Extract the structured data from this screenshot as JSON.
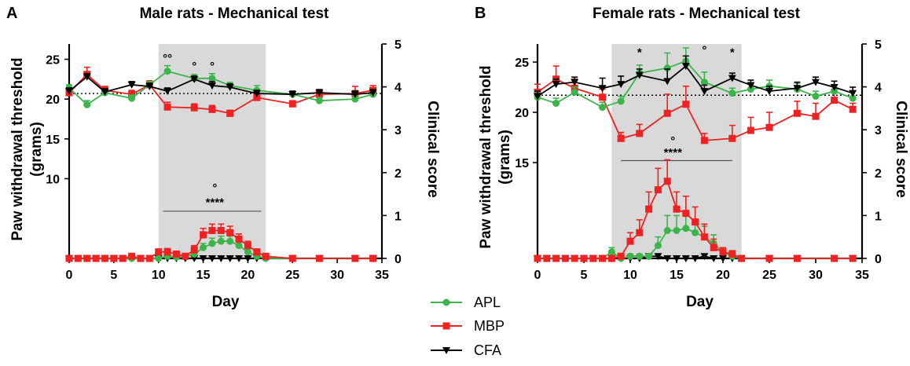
{
  "legend": [
    {
      "name": "APL",
      "color": "#3cb44b",
      "marker": "circle"
    },
    {
      "name": "MBP",
      "color": "#ee2222",
      "marker": "square"
    },
    {
      "name": "CFA",
      "color": "#000000",
      "marker": "triangle-down"
    }
  ],
  "chart_data": [
    {
      "type": "line",
      "panel": "A",
      "title": "Male rats - Mechanical test",
      "xlabel": "Day",
      "ylabel": "Paw withdrawal threshold (grams)",
      "ylabel_lines": [
        "Paw withdrawal threshold",
        "(grams)"
      ],
      "y2label": "Clinical score",
      "xlim": [
        0,
        35
      ],
      "xticks": [
        0,
        5,
        10,
        15,
        20,
        25,
        30,
        35
      ],
      "ylim_left_ticks": [
        10,
        15,
        20,
        25
      ],
      "y2lim": [
        0,
        5
      ],
      "y2ticks": [
        0,
        1,
        2,
        3,
        4,
        5
      ],
      "shaded_region_days": [
        10,
        22
      ],
      "baseline_threshold": 20.7,
      "threshold_series": [
        {
          "name": "APL",
          "x": [
            0,
            2,
            4,
            7,
            9,
            11,
            14,
            16,
            18,
            21,
            25,
            28,
            32,
            34
          ],
          "values": [
            21.4,
            19.3,
            20.8,
            20.1,
            21.8,
            23.5,
            22.6,
            22.6,
            21.7,
            21.1,
            20.6,
            19.8,
            20.0,
            20.6
          ],
          "err": [
            0.4,
            0.5,
            0.4,
            0.4,
            0.4,
            0.7,
            0.5,
            0.6,
            0.4,
            0.6,
            0.4,
            0.4,
            0.5,
            0.6
          ]
        },
        {
          "name": "MBP",
          "x": [
            0,
            2,
            4,
            7,
            9,
            11,
            14,
            16,
            18,
            21,
            25,
            28,
            32,
            34
          ],
          "values": [
            20.8,
            23.1,
            21.1,
            20.6,
            21.8,
            19.0,
            18.9,
            18.7,
            18.2,
            20.2,
            19.4,
            20.6,
            20.7,
            21.1
          ],
          "err": [
            0.5,
            0.9,
            0.5,
            0.5,
            0.5,
            0.6,
            0.5,
            0.5,
            0.4,
            0.4,
            0.4,
            0.4,
            0.9,
            0.6
          ]
        },
        {
          "name": "CFA",
          "x": [
            0,
            2,
            4,
            7,
            9,
            11,
            14,
            16,
            18,
            21,
            25,
            28,
            32,
            34
          ],
          "values": [
            21.0,
            22.8,
            20.9,
            21.8,
            21.6,
            21.0,
            22.5,
            21.7,
            21.5,
            20.7,
            20.6,
            20.8,
            20.6,
            20.8
          ],
          "err": [
            0.4,
            0.4,
            0.4,
            0.4,
            0.4,
            0.4,
            0.4,
            0.5,
            0.4,
            0.4,
            0.4,
            0.4,
            0.4,
            0.4
          ]
        }
      ],
      "score_series": [
        {
          "name": "APL",
          "x": [
            0,
            1,
            2,
            3,
            4,
            5,
            6,
            7,
            8,
            9,
            10,
            11,
            12,
            13,
            14,
            15,
            16,
            17,
            18,
            19,
            20,
            21,
            22,
            25,
            28,
            32,
            34
          ],
          "values": [
            0,
            0,
            0,
            0,
            0,
            0,
            0,
            0,
            0,
            0,
            0,
            0.05,
            0.03,
            0.05,
            0.1,
            0.25,
            0.35,
            0.4,
            0.4,
            0.3,
            0.15,
            0.05,
            0,
            0,
            0,
            0,
            0
          ],
          "err": [
            0,
            0,
            0,
            0,
            0,
            0,
            0,
            0,
            0,
            0,
            0,
            0.05,
            0.03,
            0.05,
            0.07,
            0.1,
            0.12,
            0.12,
            0.12,
            0.1,
            0.08,
            0.04,
            0,
            0,
            0,
            0,
            0
          ]
        },
        {
          "name": "MBP",
          "x": [
            0,
            1,
            2,
            3,
            4,
            5,
            6,
            7,
            8,
            9,
            10,
            11,
            12,
            13,
            14,
            15,
            16,
            17,
            18,
            19,
            20,
            21,
            22,
            25,
            28,
            32,
            34
          ],
          "values": [
            0,
            0,
            0,
            0,
            0,
            0,
            0,
            0.05,
            0,
            0,
            0.15,
            0.15,
            0.1,
            0.05,
            0.2,
            0.55,
            0.65,
            0.65,
            0.6,
            0.45,
            0.3,
            0.15,
            0.05,
            0,
            0,
            0,
            0
          ],
          "err": [
            0,
            0,
            0,
            0,
            0,
            0,
            0,
            0.04,
            0,
            0,
            0.07,
            0.08,
            0.06,
            0.05,
            0.1,
            0.15,
            0.15,
            0.15,
            0.15,
            0.12,
            0.1,
            0.07,
            0.04,
            0,
            0,
            0,
            0
          ]
        },
        {
          "name": "CFA",
          "x": [
            0,
            1,
            2,
            3,
            4,
            5,
            6,
            7,
            8,
            9,
            10,
            11,
            12,
            13,
            14,
            15,
            16,
            17,
            18,
            19,
            20,
            21,
            22,
            25,
            28,
            32,
            34
          ],
          "values": [
            0,
            0,
            0,
            0,
            0,
            0,
            0,
            0,
            0,
            0,
            0,
            0,
            0,
            0,
            0,
            0,
            0,
            0,
            0,
            0,
            0,
            0,
            0,
            0,
            0,
            0,
            0
          ],
          "err": []
        }
      ],
      "annotations": [
        {
          "text": "°",
          "x": 2,
          "y": 22.0,
          "axis": "left"
        },
        {
          "text": "°°",
          "x": 11,
          "y": 24.6,
          "axis": "left"
        },
        {
          "text": "°",
          "x": 14,
          "y": 23.6,
          "axis": "left"
        },
        {
          "text": "°",
          "x": 16,
          "y": 23.6,
          "axis": "left"
        },
        {
          "text": "°",
          "x": 16.3,
          "y": 1.55,
          "axis": "right"
        },
        {
          "text": "****",
          "x": 16.3,
          "y": 1.22,
          "axis": "right"
        }
      ],
      "significance_bar": {
        "x": [
          10.5,
          21.5
        ],
        "y": 1.1
      }
    },
    {
      "type": "line",
      "panel": "B",
      "title": "Female rats - Mechanical test",
      "xlabel": "Day",
      "ylabel": "Paw withdrawal threshold (grams)",
      "ylabel_lines": [
        "Paw withdrawal threshold",
        "(grams)"
      ],
      "y2label": "Clinical score",
      "xlim": [
        0,
        35
      ],
      "xticks": [
        0,
        5,
        10,
        15,
        20,
        25,
        30,
        35
      ],
      "ylim_left_ticks": [
        15,
        20,
        25
      ],
      "y2lim": [
        0,
        5
      ],
      "y2ticks": [
        0,
        1,
        2,
        3,
        4,
        5
      ],
      "shaded_region_days": [
        8,
        22
      ],
      "baseline_threshold": 21.7,
      "threshold_series": [
        {
          "name": "APL",
          "x": [
            0,
            2,
            4,
            7,
            9,
            11,
            14,
            16,
            18,
            21,
            23,
            25,
            28,
            30,
            32,
            34
          ],
          "values": [
            21.5,
            20.9,
            22.0,
            20.5,
            21.1,
            23.9,
            24.4,
            25.1,
            23.0,
            21.9,
            22.3,
            22.6,
            22.3,
            21.6,
            22.1,
            21.4
          ],
          "err": [
            0.5,
            0.5,
            0.5,
            0.5,
            0.5,
            0.8,
            1.5,
            1.3,
            1.0,
            0.5,
            0.5,
            0.6,
            0.6,
            0.5,
            0.6,
            0.7
          ]
        },
        {
          "name": "MBP",
          "x": [
            0,
            2,
            4,
            7,
            9,
            11,
            14,
            16,
            18,
            21,
            23,
            25,
            28,
            30,
            32,
            34
          ],
          "values": [
            22.0,
            23.3,
            22.4,
            21.5,
            17.4,
            17.9,
            19.9,
            20.8,
            17.2,
            17.4,
            18.2,
            18.5,
            19.9,
            19.6,
            21.2,
            20.3
          ],
          "err": [
            0.8,
            1.3,
            0.9,
            0.8,
            0.6,
            0.9,
            1.9,
            1.8,
            0.7,
            1.3,
            1.3,
            1.5,
            1.2,
            1.3,
            1.1,
            0.6
          ]
        },
        {
          "name": "CFA",
          "x": [
            0,
            2,
            4,
            7,
            9,
            11,
            14,
            16,
            18,
            21,
            23,
            25,
            28,
            30,
            32,
            34
          ],
          "values": [
            21.6,
            22.8,
            23.0,
            22.4,
            22.8,
            23.7,
            23.1,
            24.6,
            22.1,
            23.4,
            22.7,
            22.1,
            22.4,
            23.0,
            22.5,
            21.9
          ],
          "err": [
            0.5,
            0.5,
            0.5,
            1.0,
            0.8,
            0.6,
            1.2,
            1.0,
            0.6,
            0.5,
            0.5,
            0.5,
            0.6,
            0.5,
            0.6,
            0.6
          ]
        }
      ],
      "score_series": [
        {
          "name": "APL",
          "x": [
            0,
            1,
            2,
            3,
            4,
            5,
            6,
            7,
            8,
            9,
            10,
            11,
            12,
            13,
            14,
            15,
            16,
            17,
            18,
            19,
            20,
            21,
            22,
            25,
            28,
            32,
            34
          ],
          "values": [
            0,
            0,
            0,
            0,
            0,
            0,
            0,
            0,
            0.15,
            0,
            0.05,
            0.05,
            0.05,
            0.3,
            0.65,
            0.65,
            0.7,
            0.6,
            0.5,
            0.35,
            0.15,
            0.05,
            0,
            0,
            0,
            0,
            0
          ],
          "err": [
            0,
            0,
            0,
            0,
            0,
            0,
            0,
            0,
            0.1,
            0,
            0.05,
            0.05,
            0.05,
            0.2,
            0.35,
            0.35,
            0.3,
            0.3,
            0.25,
            0.2,
            0.1,
            0.05,
            0,
            0,
            0,
            0,
            0
          ]
        },
        {
          "name": "MBP",
          "x": [
            0,
            1,
            2,
            3,
            4,
            5,
            6,
            7,
            8,
            9,
            10,
            11,
            12,
            13,
            14,
            15,
            16,
            17,
            18,
            19,
            20,
            21,
            22,
            25,
            28,
            32,
            34
          ],
          "values": [
            0,
            0,
            0,
            0,
            0,
            0,
            0,
            0,
            0,
            0.05,
            0.4,
            0.6,
            1.15,
            1.6,
            1.8,
            1.15,
            1.05,
            0.85,
            0.5,
            0.25,
            0.15,
            0.1,
            0,
            0,
            0,
            0,
            0
          ],
          "err": [
            0,
            0,
            0,
            0,
            0,
            0,
            0,
            0,
            0,
            0.05,
            0.2,
            0.3,
            0.4,
            0.5,
            0.5,
            0.4,
            0.4,
            0.35,
            0.3,
            0.2,
            0.1,
            0.08,
            0,
            0,
            0,
            0,
            0
          ]
        },
        {
          "name": "CFA",
          "x": [
            0,
            1,
            2,
            3,
            4,
            5,
            6,
            7,
            8,
            9,
            10,
            11,
            12,
            13,
            14,
            15,
            16,
            17,
            18,
            19,
            20,
            21,
            22,
            25,
            28,
            32,
            34
          ],
          "values": [
            0,
            0,
            0,
            0,
            0,
            0,
            0,
            0,
            0,
            0,
            0,
            0,
            0.05,
            0.05,
            0,
            0,
            0,
            0,
            0.05,
            0,
            0,
            0,
            0,
            0,
            0,
            0,
            0
          ],
          "err": []
        }
      ],
      "annotations": [
        {
          "text": "*",
          "x": 11,
          "y": 25.6,
          "axis": "left"
        },
        {
          "text": "°",
          "x": 18,
          "y": 25.8,
          "axis": "left"
        },
        {
          "text": "*",
          "x": 21,
          "y": 25.6,
          "axis": "left"
        },
        {
          "text": "°",
          "x": 14.6,
          "y": 2.65,
          "axis": "right"
        },
        {
          "text": "****",
          "x": 14.6,
          "y": 2.38,
          "axis": "right"
        }
      ],
      "significance_bar": {
        "x": [
          9,
          21
        ],
        "y": 2.28
      }
    }
  ]
}
